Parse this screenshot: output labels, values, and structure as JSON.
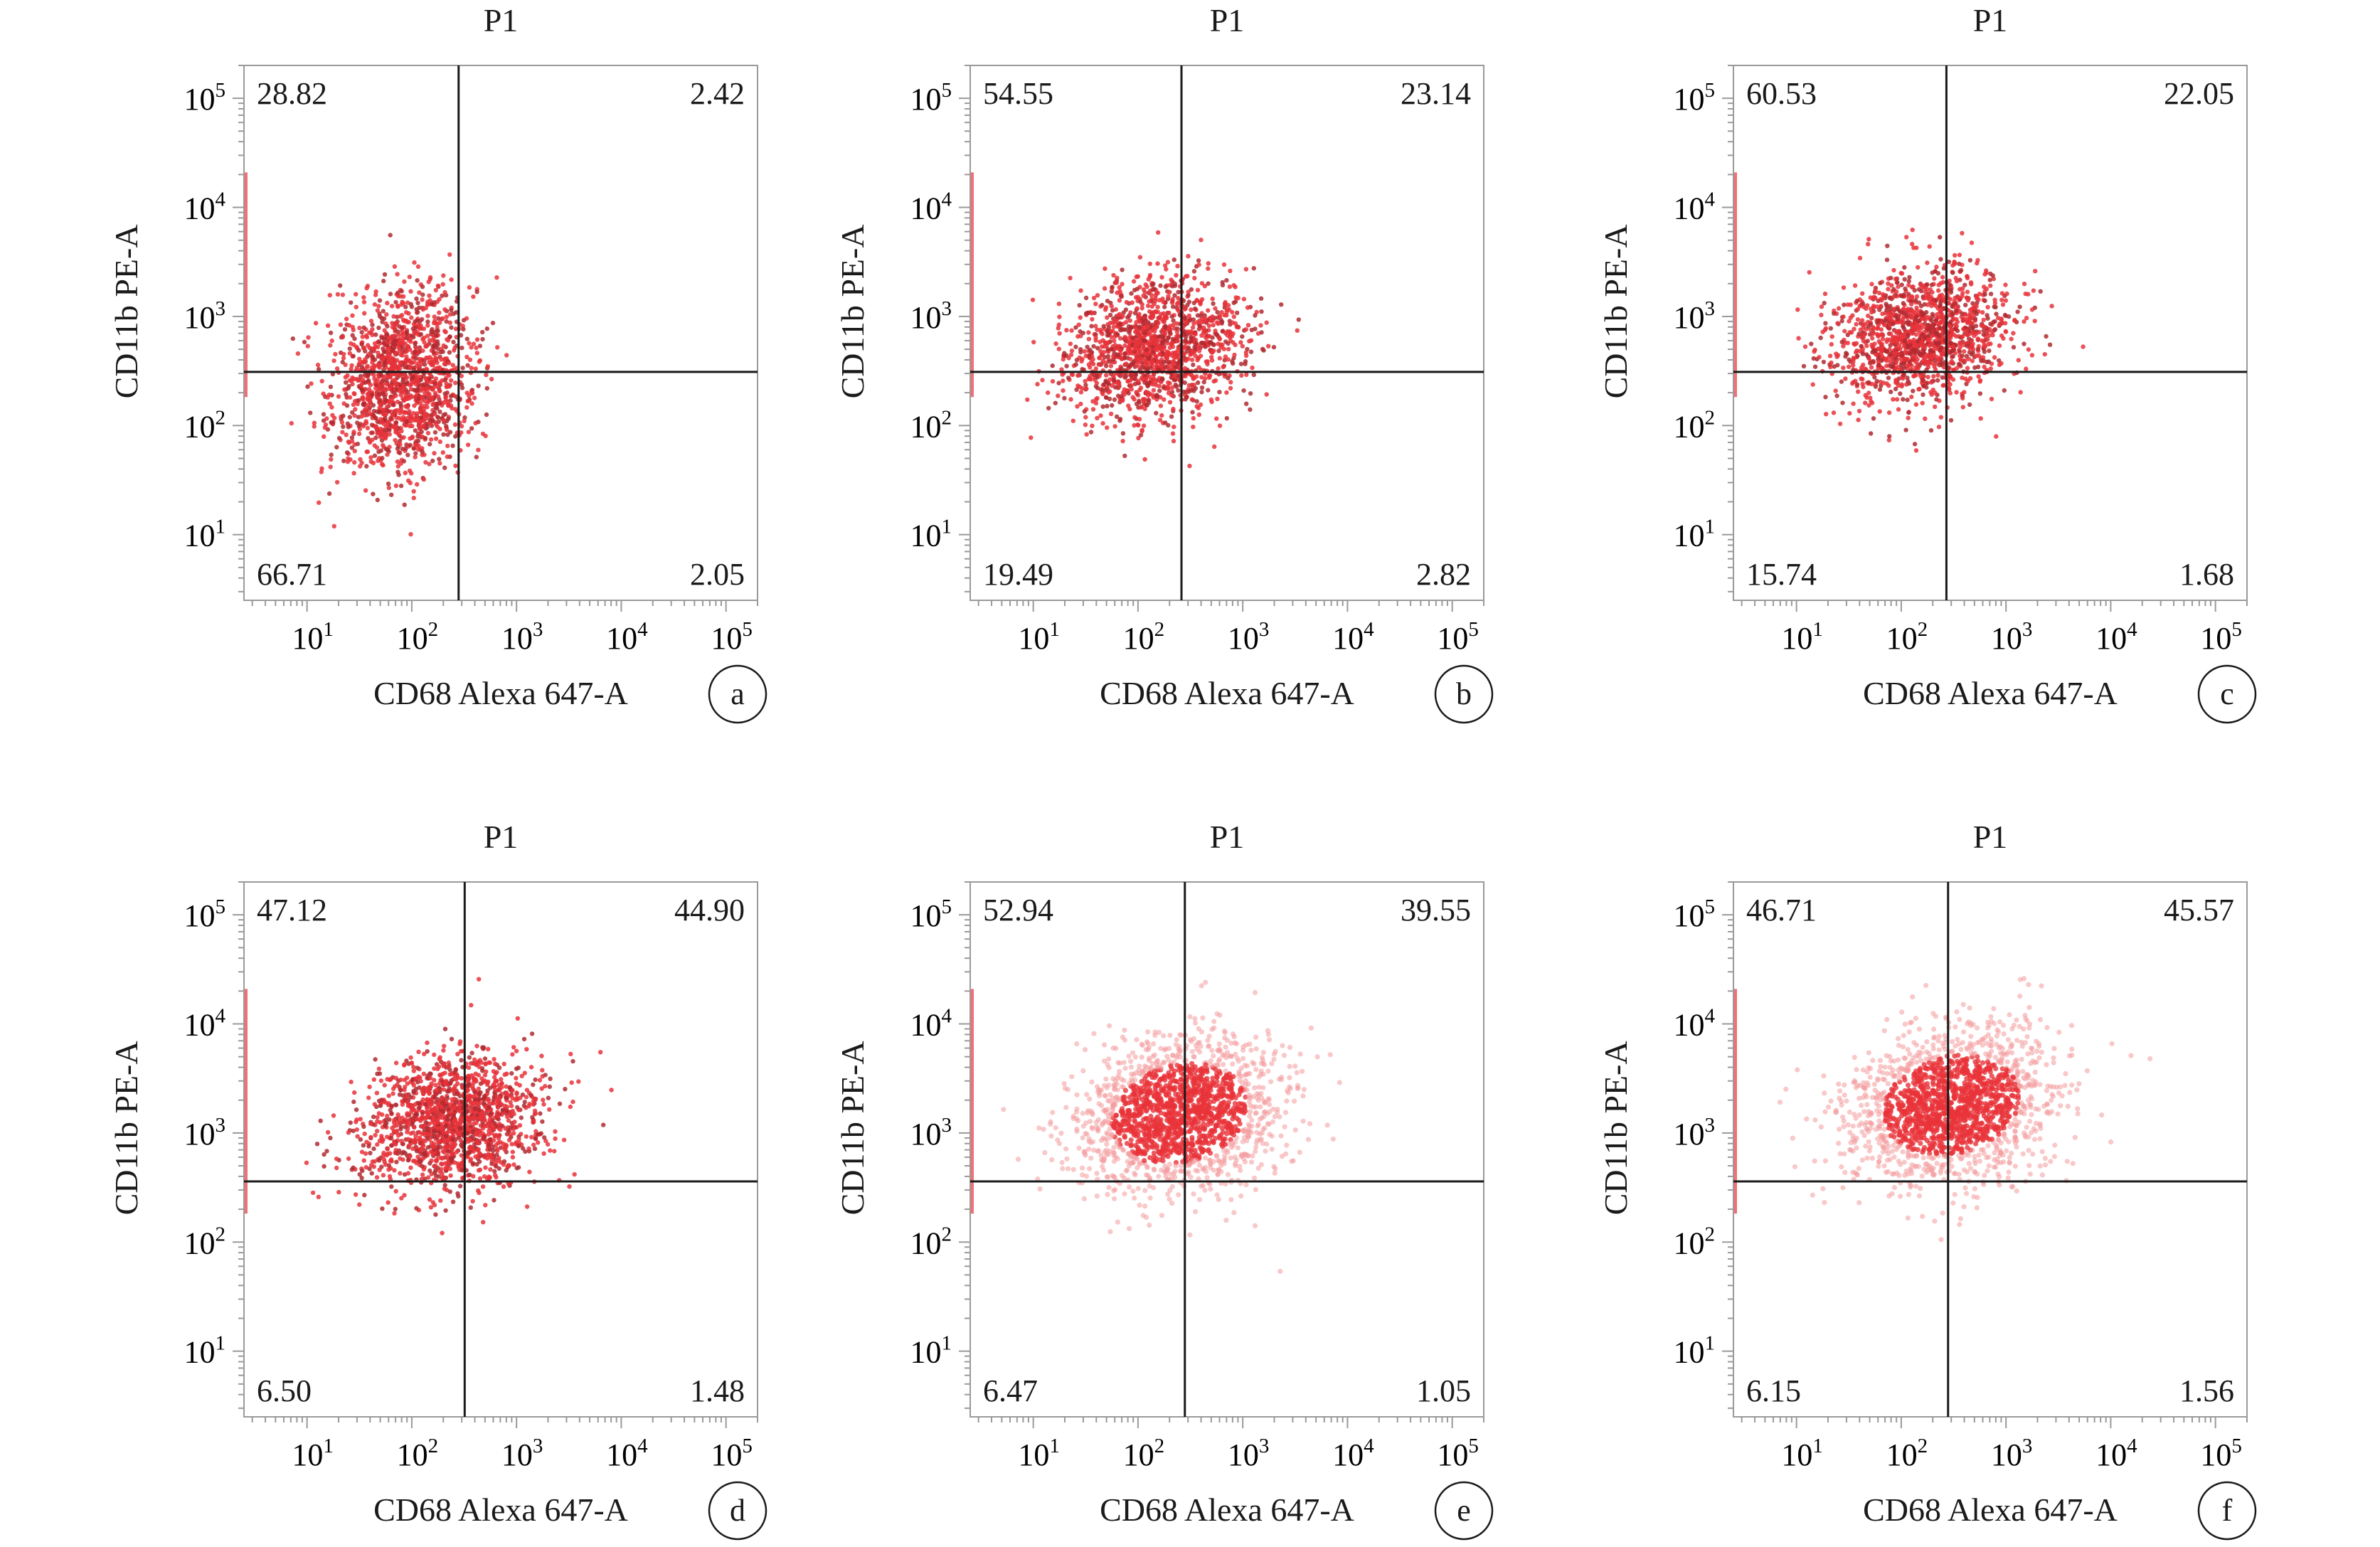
{
  "figure": {
    "colors": {
      "dots": "#e8333a",
      "dots_dark": "#b02a30",
      "dots_light": "#f49a9c",
      "frame": "#9a9a9a",
      "gate": "#1a1a1a"
    }
  },
  "chart_data": [
    {
      "type": "scatter",
      "panel": "a",
      "title": "P1",
      "xlabel": "CD68 Alexa 647-A",
      "ylabel": "CD11b PE-A",
      "x_scale": "log",
      "y_scale": "log",
      "xlim": [
        2.5,
        200000
      ],
      "ylim": [
        2.5,
        200000
      ],
      "x_ticks": [
        10,
        100,
        1000,
        10000,
        100000
      ],
      "y_ticks": [
        10,
        100,
        1000,
        10000,
        100000
      ],
      "gate": {
        "x": 280,
        "y": 310
      },
      "quadrants": {
        "upper_left": "28.82",
        "upper_right": "2.42",
        "lower_left": "66.71",
        "lower_right": "2.05"
      },
      "cloud": {
        "x_center": 80,
        "y_center": 250,
        "x_spread_decades": 0.33,
        "y_spread_decades": 0.42,
        "n_points": 1500,
        "style": "dense"
      }
    },
    {
      "type": "scatter",
      "panel": "b",
      "title": "P1",
      "xlabel": "CD68 Alexa 647-A",
      "ylabel": "CD11b PE-A",
      "x_scale": "log",
      "y_scale": "log",
      "xlim": [
        2.5,
        200000
      ],
      "ylim": [
        2.5,
        200000
      ],
      "x_ticks": [
        10,
        100,
        1000,
        10000,
        100000
      ],
      "y_ticks": [
        10,
        100,
        1000,
        10000,
        100000
      ],
      "gate": {
        "x": 260,
        "y": 310
      },
      "quadrants": {
        "upper_left": "54.55",
        "upper_right": "23.14",
        "lower_left": "19.49",
        "lower_right": "2.82"
      },
      "cloud": {
        "x_center": 150,
        "y_center": 500,
        "x_spread_decades": 0.42,
        "y_spread_decades": 0.32,
        "n_points": 1500,
        "style": "dense"
      }
    },
    {
      "type": "scatter",
      "panel": "c",
      "title": "P1",
      "xlabel": "CD68 Alexa 647-A",
      "ylabel": "CD11b PE-A",
      "x_scale": "log",
      "y_scale": "log",
      "xlim": [
        2.5,
        200000
      ],
      "ylim": [
        2.5,
        200000
      ],
      "x_ticks": [
        10,
        100,
        1000,
        10000,
        100000
      ],
      "y_ticks": [
        10,
        100,
        1000,
        10000,
        100000
      ],
      "gate": {
        "x": 270,
        "y": 310
      },
      "quadrants": {
        "upper_left": "60.53",
        "upper_right": "22.05",
        "lower_left": "15.74",
        "lower_right": "1.68"
      },
      "cloud": {
        "x_center": 150,
        "y_center": 650,
        "x_spread_decades": 0.42,
        "y_spread_decades": 0.3,
        "n_points": 1500,
        "style": "dense"
      }
    },
    {
      "type": "scatter",
      "panel": "d",
      "title": "P1",
      "xlabel": "CD68 Alexa 647-A",
      "ylabel": "CD11b PE-A",
      "x_scale": "log",
      "y_scale": "log",
      "xlim": [
        2.5,
        200000
      ],
      "ylim": [
        2.5,
        200000
      ],
      "x_ticks": [
        10,
        100,
        1000,
        10000,
        100000
      ],
      "y_ticks": [
        10,
        100,
        1000,
        10000,
        100000
      ],
      "gate": {
        "x": 320,
        "y": 360
      },
      "quadrants": {
        "upper_left": "47.12",
        "upper_right": "44.90",
        "lower_left": "6.50",
        "lower_right": "1.48"
      },
      "cloud": {
        "x_center": 250,
        "y_center": 1200,
        "x_spread_decades": 0.45,
        "y_spread_decades": 0.3,
        "n_points": 1600,
        "style": "dense"
      }
    },
    {
      "type": "scatter",
      "panel": "e",
      "title": "P1",
      "xlabel": "CD68 Alexa 647-A",
      "ylabel": "CD11b PE-A",
      "x_scale": "log",
      "y_scale": "log",
      "xlim": [
        2.5,
        200000
      ],
      "ylim": [
        2.5,
        200000
      ],
      "x_ticks": [
        10,
        100,
        1000,
        10000,
        100000
      ],
      "y_ticks": [
        10,
        100,
        1000,
        10000,
        100000
      ],
      "gate": {
        "x": 280,
        "y": 360
      },
      "quadrants": {
        "upper_left": "52.94",
        "upper_right": "39.55",
        "lower_left": "6.47",
        "lower_right": "1.05"
      },
      "cloud": {
        "x_center": 250,
        "y_center": 1500,
        "x_spread_decades": 0.5,
        "y_spread_decades": 0.35,
        "n_points": 1700,
        "style": "diffuse"
      }
    },
    {
      "type": "scatter",
      "panel": "f",
      "title": "P1",
      "xlabel": "CD68 Alexa 647-A",
      "ylabel": "CD11b PE-A",
      "x_scale": "log",
      "y_scale": "log",
      "xlim": [
        2.5,
        200000
      ],
      "ylim": [
        2.5,
        200000
      ],
      "x_ticks": [
        10,
        100,
        1000,
        10000,
        100000
      ],
      "y_ticks": [
        10,
        100,
        1000,
        10000,
        100000
      ],
      "gate": {
        "x": 280,
        "y": 360
      },
      "quadrants": {
        "upper_left": "46.71",
        "upper_right": "45.57",
        "lower_left": "6.15",
        "lower_right": "1.56"
      },
      "cloud": {
        "x_center": 300,
        "y_center": 1800,
        "x_spread_decades": 0.5,
        "y_spread_decades": 0.35,
        "n_points": 1700,
        "style": "diffuse"
      }
    }
  ]
}
